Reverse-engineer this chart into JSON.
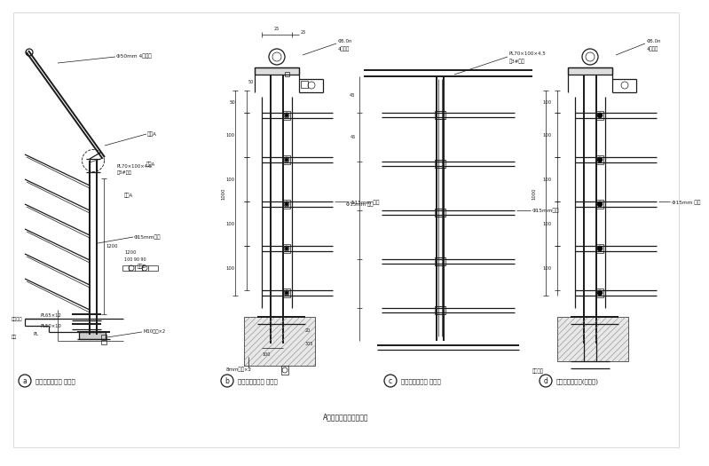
{
  "bg_color": "#ffffff",
  "line_color": "#1a1a1a",
  "title": "A型楼梯栏杆扶手大样图",
  "panel_captions": [
    "楼梯扶手立面图 侧立式",
    "楼梯栏杆剖面图 侧立式",
    "楼梯扶手立面图 侧立式",
    "楼梯扶手剖面图(直立式)"
  ],
  "label_a_texts": [
    "Φ50mm 4孔扶手",
    "钢板A",
    "PL70×100×4.5",
    "（3#胶）",
    "Φ15mm钢管",
    "不锈钢面",
    "钢材",
    "PL",
    "PL65×12",
    "PL50×10",
    "M10螺栓×2",
    "节图A",
    "节图B"
  ],
  "label_b_texts": [
    "Φ5.0n",
    "4孔扶手",
    "Φ15mm 钢管",
    "8mm螺栓×2"
  ],
  "label_c_texts": [
    "PL70×100×4.5",
    "（3#胶）",
    "Φ15mm钢管"
  ],
  "label_d_texts": [
    "Φ5.0n",
    "4孔扶手",
    "Φ15mm 钢管",
    "不锈钢管"
  ]
}
